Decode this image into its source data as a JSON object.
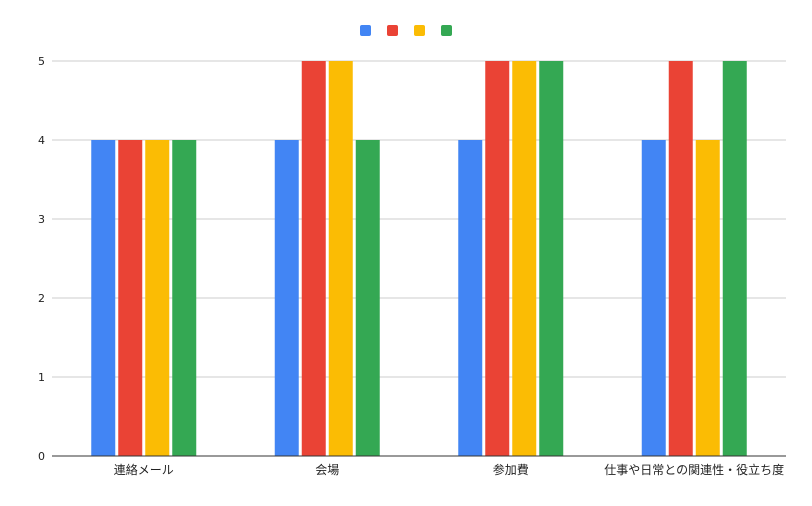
{
  "chart_data": {
    "type": "bar",
    "title": "",
    "xlabel": "",
    "ylabel": "",
    "categories": [
      "連絡メール",
      "会場",
      "参加費",
      "仕事や日常との関連性・役立ち度"
    ],
    "series": [
      {
        "color": "#4285F4",
        "values": [
          4,
          4,
          4,
          4
        ]
      },
      {
        "color": "#EA4335",
        "values": [
          4,
          5,
          5,
          5
        ]
      },
      {
        "color": "#FBBC04",
        "values": [
          4,
          5,
          5,
          4
        ]
      },
      {
        "color": "#34A853",
        "values": [
          4,
          4,
          5,
          5
        ]
      }
    ],
    "ylim": [
      0,
      5
    ],
    "yticks": [
      "0",
      "1",
      "2",
      "3",
      "4",
      "5"
    ],
    "grid": true,
    "legend_position": "top-center"
  }
}
